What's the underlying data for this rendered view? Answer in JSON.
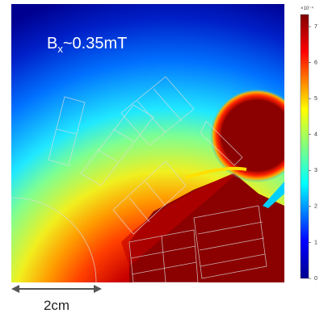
{
  "annotation": {
    "symbol": "B",
    "subscript": "x",
    "value": "~0.35mT"
  },
  "scale_bar": {
    "label": "2cm"
  },
  "colorbar": {
    "exponent_label": "×10⁻⁴",
    "ticks": [
      0,
      1,
      2,
      3,
      4,
      5,
      6,
      7
    ],
    "range": [
      0,
      7
    ]
  }
}
